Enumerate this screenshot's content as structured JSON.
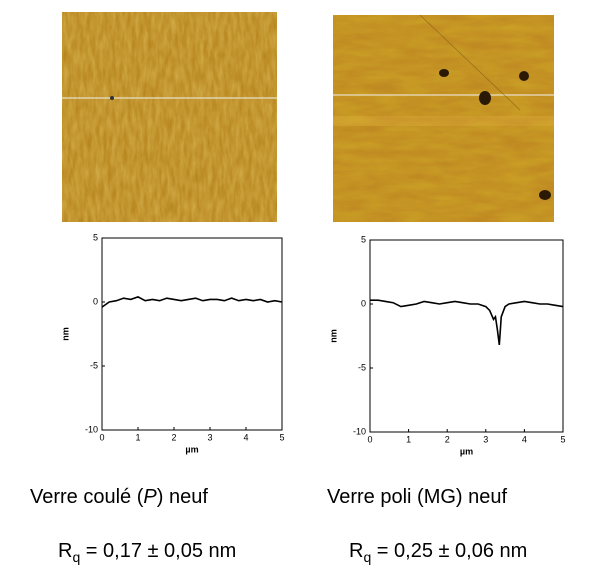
{
  "chart_data": [
    {
      "type": "line",
      "xlabel": "µm",
      "ylabel": "nm",
      "x": [
        0,
        0.2,
        0.4,
        0.6,
        0.8,
        1,
        1.2,
        1.4,
        1.6,
        1.8,
        2,
        2.2,
        2.4,
        2.6,
        2.8,
        3,
        3.2,
        3.4,
        3.6,
        3.8,
        4,
        4.2,
        4.4,
        4.6,
        4.8,
        5
      ],
      "series": [
        {
          "color": "#000000",
          "values": [
            -0.4,
            0.0,
            0.1,
            0.3,
            0.2,
            0.4,
            0.1,
            0.2,
            0.1,
            0.3,
            0.2,
            0.1,
            0.2,
            0.3,
            0.1,
            0.2,
            0.2,
            0.1,
            0.3,
            0.1,
            0.2,
            0.1,
            0.2,
            0.0,
            0.1,
            0.0
          ]
        }
      ],
      "xlim": [
        0,
        5
      ],
      "xticks": [
        0,
        1,
        2,
        3,
        4,
        5
      ],
      "ylim": [
        -10,
        5
      ],
      "yticks": [
        -10,
        -5,
        0,
        5
      ]
    },
    {
      "type": "line",
      "xlabel": "µm",
      "ylabel": "nm",
      "x": [
        0,
        0.2,
        0.4,
        0.6,
        0.8,
        1,
        1.2,
        1.4,
        1.6,
        1.8,
        2,
        2.2,
        2.4,
        2.6,
        2.8,
        3,
        3.1,
        3.2,
        3.25,
        3.3,
        3.35,
        3.4,
        3.5,
        3.6,
        3.8,
        4,
        4.2,
        4.4,
        4.6,
        4.8,
        5
      ],
      "series": [
        {
          "color": "#000000",
          "values": [
            0.3,
            0.3,
            0.2,
            0.1,
            -0.2,
            -0.1,
            0.0,
            0.2,
            0.1,
            0.0,
            0.1,
            0.2,
            0.1,
            0.0,
            0.0,
            -0.2,
            -0.5,
            -1.2,
            -1.0,
            -2.0,
            -3.2,
            -1.0,
            -0.2,
            0.0,
            0.1,
            0.2,
            0.1,
            0.0,
            0.0,
            -0.1,
            -0.2
          ]
        }
      ],
      "xlim": [
        0,
        5
      ],
      "xticks": [
        0,
        1,
        2,
        3,
        4,
        5
      ],
      "ylim": [
        -10,
        5
      ],
      "yticks": [
        -10,
        -5,
        0,
        5
      ]
    }
  ],
  "captions": [
    {
      "before": "Verre coulé (",
      "italic": "P",
      "after": ") neuf",
      "symbol": "R",
      "subscript": "q",
      "text": " = 0,17 ± 0,05 nm",
      "color": "#000000"
    },
    {
      "before": "Verre poli (MG) neuf",
      "symbol": "R",
      "subscript": "q",
      "text": " = 0,25 ± 0,06 nm",
      "color": "#d40000"
    }
  ]
}
